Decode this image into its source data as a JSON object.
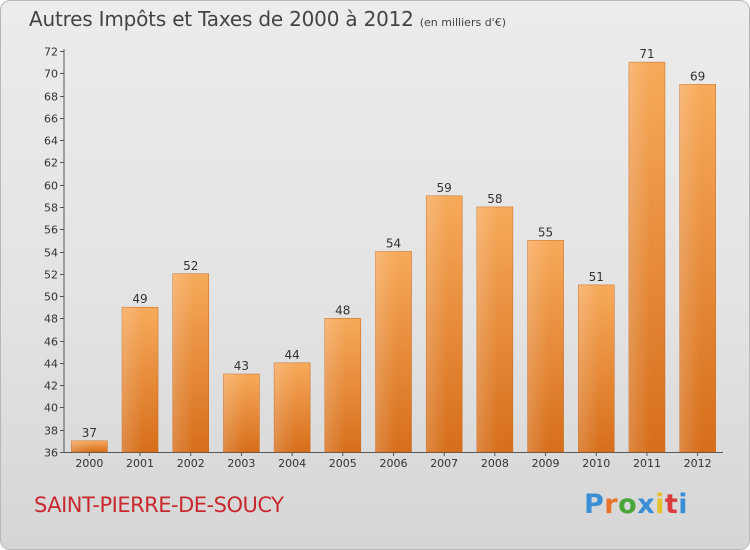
{
  "title": "Autres Impôts et Taxes de 2000 à 2012",
  "title_unit": "(en milliers d'€)",
  "commune": "SAINT-PIERRE-DE-SOUCY",
  "logo": {
    "letters": [
      "P",
      "r",
      "o",
      "x",
      "i",
      "t",
      "i"
    ],
    "colors": [
      "#3a8ed6",
      "#e8742a",
      "#4aa53a",
      "#3a8ed6",
      "#e8c02a",
      "#d93a3a",
      "#3a8ed6"
    ]
  },
  "colors": {
    "bar_light": "#f6a555",
    "bar_dark": "#d8701c",
    "commune": "#c8292e"
  },
  "chart_data": {
    "type": "bar",
    "categories": [
      "2000",
      "2001",
      "2002",
      "2003",
      "2004",
      "2005",
      "2006",
      "2007",
      "2008",
      "2009",
      "2010",
      "2011",
      "2012"
    ],
    "values": [
      37,
      49,
      52,
      43,
      44,
      48,
      54,
      59,
      58,
      55,
      51,
      71,
      69
    ],
    "title": "Autres Impôts et Taxes de 2000 à 2012",
    "xlabel": "",
    "ylabel": "",
    "ylim": [
      36,
      72
    ],
    "yticks": [
      36,
      38,
      40,
      42,
      44,
      46,
      48,
      50,
      52,
      54,
      56,
      58,
      60,
      62,
      64,
      66,
      68,
      70,
      72
    ],
    "grid": false,
    "legend": "none"
  }
}
